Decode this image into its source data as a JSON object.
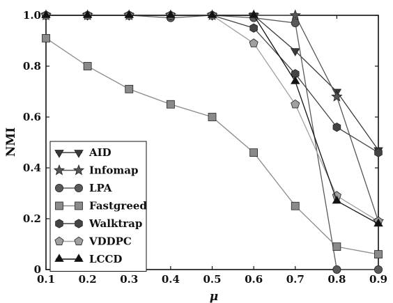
{
  "chart_data": {
    "type": "line",
    "title": "",
    "xlabel": "μ",
    "ylabel": "NMI",
    "xlim": [
      0.1,
      0.9
    ],
    "ylim": [
      0,
      1.0
    ],
    "x_ticks": [
      "0.1",
      "0.2",
      "0.3",
      "0.4",
      "0.5",
      "0.6",
      "0.7",
      "0.8",
      "0.9"
    ],
    "y_ticks": [
      "0",
      "0.2",
      "0.4",
      "0.6",
      "0.8",
      "1.0"
    ],
    "grid": false,
    "legend_position": "bottom-left",
    "x": [
      0.1,
      0.2,
      0.3,
      0.4,
      0.5,
      0.6,
      0.7,
      0.8,
      0.9
    ],
    "series": [
      {
        "name": "AID",
        "marker": "triangle-down",
        "color": "#3a3a3a",
        "values": [
          1.0,
          1.0,
          1.0,
          1.0,
          1.0,
          1.0,
          0.86,
          0.7,
          0.47
        ]
      },
      {
        "name": "Infomap",
        "marker": "star",
        "color": "#555555",
        "values": [
          1.0,
          1.0,
          1.0,
          1.0,
          1.0,
          1.0,
          1.0,
          0.68,
          0.19
        ]
      },
      {
        "name": "LPA",
        "marker": "circle",
        "color": "#5a5a5a",
        "values": [
          1.0,
          1.0,
          1.0,
          0.99,
          1.0,
          0.99,
          0.97,
          0.0,
          0.0
        ]
      },
      {
        "name": "Fastgreed",
        "marker": "square",
        "color": "#8a8a8a",
        "values": [
          0.91,
          0.8,
          0.71,
          0.65,
          0.6,
          0.46,
          0.25,
          0.09,
          0.06
        ]
      },
      {
        "name": "Walktrap",
        "marker": "hexagon",
        "color": "#444444",
        "values": [
          1.0,
          1.0,
          1.0,
          1.0,
          1.0,
          0.95,
          0.77,
          0.56,
          0.46
        ]
      },
      {
        "name": "VDDPC",
        "marker": "pentagon",
        "color": "#a0a0a0",
        "values": [
          1.0,
          1.0,
          1.0,
          1.0,
          1.0,
          0.89,
          0.65,
          0.29,
          0.19
        ]
      },
      {
        "name": "LCCD",
        "marker": "triangle-up",
        "color": "#111111",
        "values": [
          1.0,
          1.0,
          1.0,
          1.0,
          1.0,
          1.0,
          0.74,
          0.27,
          0.18
        ]
      }
    ]
  }
}
